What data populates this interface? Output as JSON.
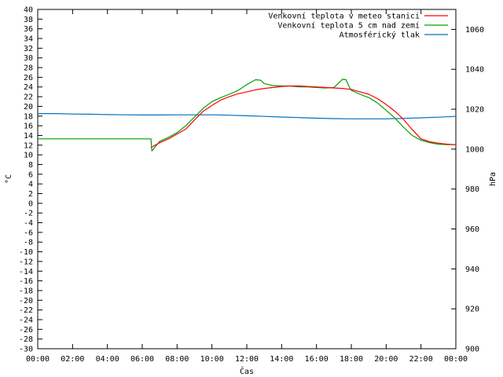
{
  "chart_data": {
    "type": "line",
    "xlabel": "Čas",
    "ylabel_left": "°C",
    "ylabel_right": "hPa",
    "y_left_lim": [
      -30,
      40
    ],
    "y_right_lim": [
      900,
      1070
    ],
    "x_ticks": [
      "00:00",
      "02:00",
      "04:00",
      "06:00",
      "08:00",
      "10:00",
      "12:00",
      "14:00",
      "16:00",
      "18:00",
      "20:00",
      "22:00",
      "00:00"
    ],
    "y_left_ticks": [
      -30,
      -28,
      -26,
      -24,
      -22,
      -20,
      -18,
      -16,
      -14,
      -12,
      -10,
      -8,
      -6,
      -4,
      -2,
      0,
      2,
      4,
      6,
      8,
      10,
      12,
      14,
      16,
      18,
      20,
      22,
      24,
      26,
      28,
      30,
      32,
      34,
      36,
      38,
      40
    ],
    "y_right_ticks": [
      900,
      920,
      940,
      960,
      980,
      1000,
      1020,
      1040,
      1060
    ],
    "grid": false,
    "legend_position": "top-right",
    "series": [
      {
        "name": "Venkovní teplota v meteo stanici",
        "color": "#ff0000",
        "axis": "left",
        "x": [
          6.5,
          7,
          7.5,
          8,
          8.5,
          9,
          9.5,
          10,
          10.5,
          11,
          11.5,
          12,
          12.5,
          13,
          13.5,
          14,
          14.5,
          15,
          15.5,
          16,
          16.5,
          17,
          17.5,
          18,
          18.5,
          19,
          19.5,
          20,
          20.5,
          21,
          21.5,
          22,
          22.5,
          23,
          23.5,
          24
        ],
        "y": [
          11.5,
          12.5,
          13.3,
          14.3,
          15.3,
          17.2,
          19,
          20.2,
          21.3,
          22,
          22.6,
          23,
          23.4,
          23.7,
          23.9,
          24.1,
          24.2,
          24.2,
          24.1,
          24,
          23.9,
          23.8,
          23.7,
          23.5,
          23,
          22.5,
          21.6,
          20.4,
          19,
          17.3,
          15.2,
          13.3,
          12.7,
          12.4,
          12.2,
          12.1
        ]
      },
      {
        "name": "Venkovní teplota 5 cm nad zemí",
        "color": "#00a000",
        "axis": "left",
        "x": [
          0,
          6.5,
          6.55,
          7,
          7.5,
          8,
          8.5,
          9,
          9.5,
          10,
          10.5,
          11,
          11.5,
          12,
          12.5,
          12.8,
          13,
          13.5,
          14,
          14.5,
          15,
          15.5,
          16,
          16.5,
          17,
          17.5,
          17.7,
          17.85,
          18,
          18.5,
          19,
          19.5,
          20,
          20.5,
          21,
          21.5,
          22,
          22.5,
          23,
          23.5,
          24
        ],
        "y": [
          13.3,
          13.3,
          10.8,
          12.8,
          13.6,
          14.6,
          16,
          17.8,
          19.6,
          21,
          21.8,
          22.5,
          23.3,
          24.5,
          25.5,
          25.4,
          24.7,
          24.3,
          24.2,
          24.2,
          24,
          24,
          23.9,
          23.8,
          23.9,
          25.6,
          25.5,
          24.2,
          23.3,
          22.5,
          21.8,
          20.7,
          19.2,
          17.6,
          15.7,
          14,
          13,
          12.5,
          12.2,
          12.1,
          12.1
        ]
      },
      {
        "name": "Atmosférický tlak",
        "color": "#0070c0",
        "axis": "right",
        "x": [
          0,
          1,
          2,
          3,
          4,
          5,
          6,
          7,
          8,
          9,
          10,
          11,
          12,
          13,
          14,
          15,
          16,
          17,
          18,
          19,
          20,
          21,
          22,
          23,
          24
        ],
        "y": [
          1017.8,
          1017.8,
          1017.6,
          1017.5,
          1017.3,
          1017.2,
          1017.1,
          1017.1,
          1017.2,
          1017.2,
          1017.2,
          1017.0,
          1016.7,
          1016.4,
          1016.1,
          1015.8,
          1015.5,
          1015.3,
          1015.2,
          1015.2,
          1015.2,
          1015.4,
          1015.7,
          1016.0,
          1016.4
        ]
      }
    ]
  }
}
